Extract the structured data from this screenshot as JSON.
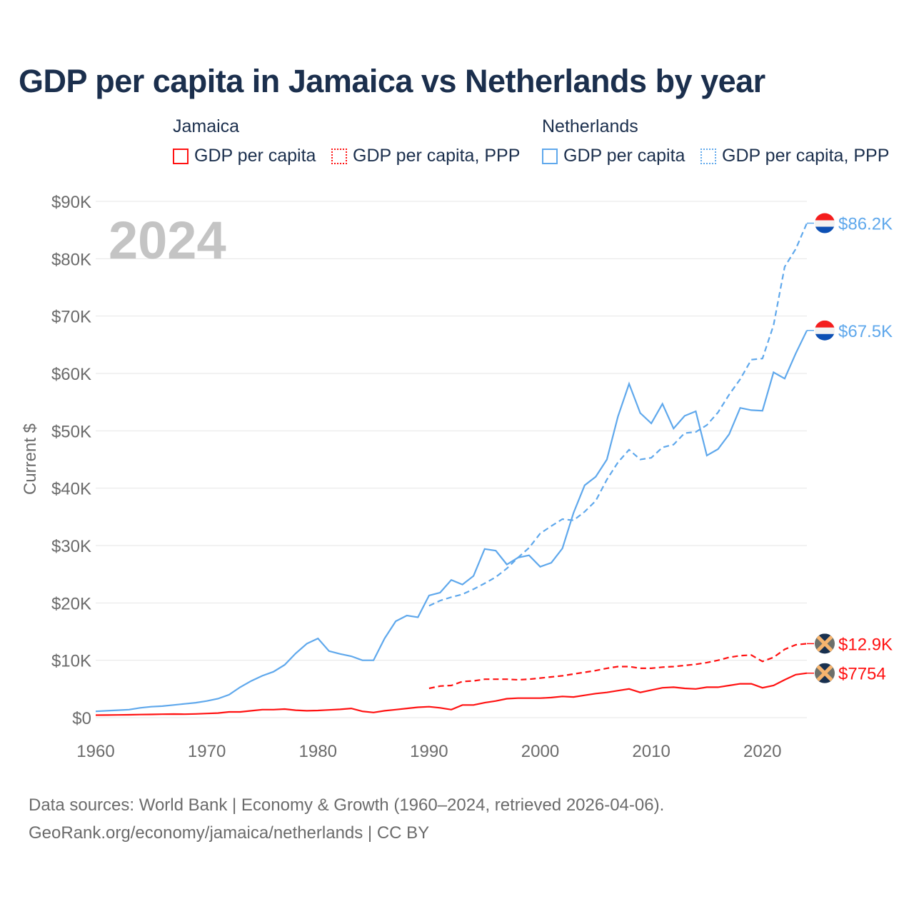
{
  "title": "GDP per capita in Jamaica vs Netherlands by year",
  "legend": {
    "groups": [
      {
        "country": "Jamaica",
        "items": [
          "GDP per capita",
          "GDP per capita, PPP"
        ],
        "color": "#ff1111"
      },
      {
        "country": "Netherlands",
        "items": [
          "GDP per capita",
          "GDP per capita, PPP"
        ],
        "color": "#5fa8ec"
      }
    ]
  },
  "footer": {
    "line1": "Data sources: World Bank | Economy & Growth (1960–2024, retrieved 2026-04-06).",
    "line2": "GeoRank.org/economy/jamaica/netherlands | CC BY"
  },
  "chart_data": {
    "type": "line",
    "title": "GDP per capita in Jamaica vs Netherlands by year",
    "year_label": "2024",
    "ylabel": "Current $",
    "xlim": [
      1960,
      2024
    ],
    "ylim": [
      0,
      90000
    ],
    "xticks": [
      1960,
      1970,
      1980,
      1990,
      2000,
      2010,
      2020
    ],
    "xtick_labels": [
      "1960",
      "1970",
      "1980",
      "1990",
      "2000",
      "2010",
      "2020"
    ],
    "yticks": [
      0,
      10000,
      20000,
      30000,
      40000,
      50000,
      60000,
      70000,
      80000,
      90000
    ],
    "ytick_labels": [
      "$0",
      "$10K",
      "$20K",
      "$30K",
      "$40K",
      "$50K",
      "$60K",
      "$70K",
      "$80K",
      "$90K"
    ],
    "grid": true,
    "legend_position": "top",
    "series": [
      {
        "name": "Netherlands GDP per capita",
        "color": "#5fa8ec",
        "dash": false,
        "start": 1960,
        "end_label": "$67.5K",
        "flag": "netherlands",
        "values": [
          1.1,
          1.2,
          1.3,
          1.4,
          1.7,
          1.9,
          2.0,
          2.2,
          2.4,
          2.6,
          2.9,
          3.3,
          4.0,
          5.3,
          6.4,
          7.3,
          8.0,
          9.2,
          11.2,
          12.9,
          13.8,
          11.6,
          11.1,
          10.7,
          10.0,
          10.0,
          13.8,
          16.8,
          17.8,
          17.5,
          21.3,
          21.8,
          24.0,
          23.2,
          24.7,
          29.4,
          29.1,
          26.7,
          27.9,
          28.3,
          26.3,
          27.0,
          29.5,
          35.7,
          40.5,
          42.0,
          45.0,
          52.5,
          58.2,
          53.1,
          51.3,
          54.7,
          50.4,
          52.6,
          53.4,
          45.7,
          46.8,
          49.4,
          54.0,
          53.6,
          53.5,
          60.2,
          59.1,
          63.5,
          67.5
        ]
      },
      {
        "name": "Netherlands GDP per capita, PPP",
        "color": "#5fa8ec",
        "dash": true,
        "start": 1990,
        "end_label": "$86.2K",
        "flag": "netherlands",
        "values": [
          19.5,
          20.4,
          21.0,
          21.5,
          22.4,
          23.4,
          24.5,
          26.0,
          27.9,
          29.6,
          32.1,
          33.4,
          34.6,
          34.4,
          35.9,
          37.8,
          41.5,
          44.5,
          46.7,
          45.0,
          45.3,
          47.1,
          47.6,
          49.6,
          49.8,
          51.0,
          53.2,
          56.3,
          59.0,
          62.4,
          62.6,
          68.4,
          78.6,
          81.7,
          86.2
        ]
      },
      {
        "name": "Jamaica GDP per capita",
        "color": "#ff1111",
        "dash": false,
        "start": 1960,
        "end_label": "$7754",
        "flag": "jamaica",
        "values": [
          0.43,
          0.45,
          0.47,
          0.5,
          0.53,
          0.56,
          0.6,
          0.62,
          0.6,
          0.65,
          0.72,
          0.8,
          1.0,
          1.0,
          1.2,
          1.4,
          1.4,
          1.5,
          1.3,
          1.2,
          1.25,
          1.35,
          1.45,
          1.6,
          1.1,
          0.9,
          1.2,
          1.4,
          1.6,
          1.8,
          1.9,
          1.7,
          1.4,
          2.2,
          2.2,
          2.6,
          2.9,
          3.3,
          3.4,
          3.4,
          3.4,
          3.5,
          3.7,
          3.6,
          3.9,
          4.2,
          4.4,
          4.7,
          5.0,
          4.4,
          4.8,
          5.2,
          5.3,
          5.1,
          5.0,
          5.3,
          5.3,
          5.6,
          5.9,
          5.9,
          5.2,
          5.6,
          6.6,
          7.5,
          7.754
        ]
      },
      {
        "name": "Jamaica GDP per capita, PPP",
        "color": "#ff1111",
        "dash": true,
        "start": 1990,
        "end_label": "$12.9K",
        "flag": "jamaica",
        "values": [
          5.1,
          5.5,
          5.6,
          6.3,
          6.4,
          6.7,
          6.7,
          6.7,
          6.6,
          6.7,
          6.9,
          7.1,
          7.3,
          7.6,
          7.9,
          8.2,
          8.6,
          8.9,
          8.9,
          8.6,
          8.6,
          8.8,
          8.9,
          9.1,
          9.3,
          9.6,
          10.0,
          10.5,
          10.8,
          10.9,
          9.8,
          10.5,
          11.9,
          12.7,
          12.9
        ]
      }
    ],
    "value_unit": "thousands USD"
  }
}
